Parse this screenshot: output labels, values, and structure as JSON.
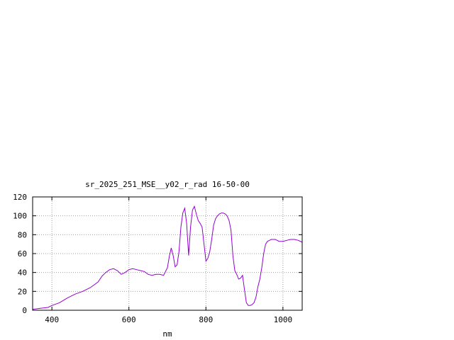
{
  "chart_data": {
    "type": "line",
    "title": "sr_2025_251_MSE__y02_r_rad 16-50-00",
    "xlabel": "nm",
    "ylabel": "",
    "xlim": [
      350,
      1050
    ],
    "ylim": [
      0,
      120
    ],
    "xticks": [
      400,
      600,
      800,
      1000
    ],
    "yticks": [
      0,
      20,
      40,
      60,
      80,
      100,
      120
    ],
    "xtick_labels": [
      "400",
      "600",
      "800",
      "1000"
    ],
    "ytick_labels": [
      "0",
      "20",
      "40",
      "60",
      "80",
      "100",
      "120"
    ],
    "grid": true,
    "legend": "none",
    "color": "#9400d3",
    "series": [
      {
        "x": [
          350,
          370,
          390,
          400,
          420,
          440,
          460,
          480,
          500,
          520,
          530,
          540,
          550,
          560,
          570,
          580,
          590,
          600,
          610,
          620,
          630,
          640,
          650,
          660,
          670,
          680,
          690,
          700,
          705,
          710,
          715,
          720,
          725,
          730,
          735,
          740,
          745,
          750,
          755,
          760,
          765,
          770,
          775,
          780,
          785,
          790,
          795,
          800,
          805,
          810,
          815,
          820,
          825,
          830,
          835,
          840,
          845,
          850,
          855,
          860,
          865,
          870,
          875,
          880,
          885,
          890,
          895,
          900,
          905,
          910,
          915,
          920,
          925,
          930,
          935,
          940,
          945,
          950,
          955,
          960,
          965,
          970,
          975,
          980,
          985,
          990,
          995,
          1000,
          1010,
          1020,
          1030,
          1040,
          1050
        ],
        "y": [
          1,
          2,
          3,
          5,
          8,
          13,
          17,
          20,
          24,
          30,
          36,
          40,
          43,
          44,
          42,
          38,
          40,
          43,
          44,
          43,
          42,
          41,
          38,
          37,
          38,
          38,
          37,
          45,
          57,
          66,
          58,
          46,
          48,
          62,
          88,
          103,
          108,
          92,
          58,
          88,
          106,
          110,
          102,
          95,
          92,
          88,
          70,
          52,
          55,
          62,
          75,
          90,
          97,
          100,
          102,
          103,
          103,
          102,
          100,
          95,
          85,
          58,
          42,
          38,
          33,
          34,
          37,
          22,
          8,
          5,
          5,
          6,
          8,
          14,
          25,
          33,
          45,
          60,
          70,
          73,
          74,
          75,
          75,
          75,
          74,
          73,
          73,
          73,
          74,
          75,
          75,
          74,
          72
        ]
      }
    ]
  }
}
